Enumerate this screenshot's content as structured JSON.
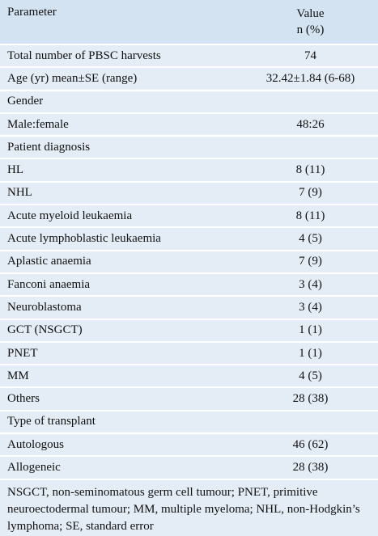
{
  "table": {
    "header": {
      "parameter": "Parameter",
      "value": [
        "Value",
        "n (%)"
      ]
    },
    "rows": [
      {
        "parameter": "Total number of PBSC harvests",
        "value": "74"
      },
      {
        "parameter": "Age (yr) mean±SE (range)",
        "value": "32.42±1.84 (6-68)"
      },
      {
        "parameter": "Gender"
      },
      {
        "parameter": "Male:female",
        "value": "48:26"
      },
      {
        "parameter": "Patient diagnosis"
      },
      {
        "parameter": "HL",
        "value": "8 (11)"
      },
      {
        "parameter": "NHL",
        "value": "7 (9)"
      },
      {
        "parameter": "Acute myeloid leukaemia",
        "value": "8 (11)"
      },
      {
        "parameter": "Acute lymphoblastic leukaemia",
        "value": "4 (5)"
      },
      {
        "parameter": "Aplastic anaemia",
        "value": "7 (9)"
      },
      {
        "parameter": "Fanconi anaemia",
        "value": "3 (4)"
      },
      {
        "parameter": "Neuroblastoma",
        "value": "3 (4)"
      },
      {
        "parameter": "GCT (NSGCT)",
        "value": "1 (1)"
      },
      {
        "parameter": "PNET",
        "value": "1 (1)"
      },
      {
        "parameter": "MM",
        "value": "4 (5)"
      },
      {
        "parameter": "Others",
        "value": "28 (38)"
      },
      {
        "parameter": "Type of transplant"
      },
      {
        "parameter": "Autologous",
        "value": "46 (62)"
      },
      {
        "parameter": "Allogeneic",
        "value": "28 (38)"
      }
    ],
    "footnote": "NSGCT, non-seminomatous germ cell tumour; PNET, primitive neuroectodermal tumour; MM, multiple myeloma; NHL, non-Hodgkin’s lymphoma; SE, standard error"
  }
}
